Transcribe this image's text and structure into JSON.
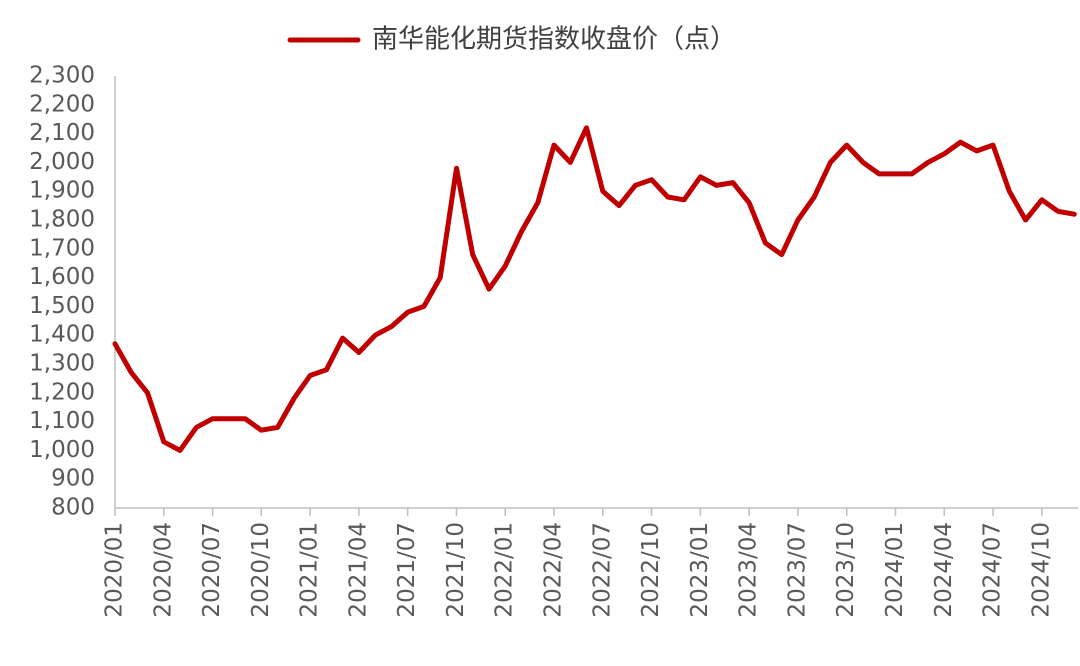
{
  "chart_data": {
    "type": "line",
    "series": [
      {
        "name": "南华能化期货指数收盘价（点）",
        "color": "#c00000",
        "values": [
          1370,
          1270,
          1200,
          1030,
          1000,
          1080,
          1110,
          1110,
          1110,
          1070,
          1080,
          1180,
          1260,
          1280,
          1390,
          1340,
          1400,
          1430,
          1480,
          1500,
          1600,
          1980,
          1680,
          1560,
          1640,
          1760,
          1860,
          2060,
          2000,
          2120,
          1900,
          1850,
          1920,
          1940,
          1880,
          1870,
          1950,
          1920,
          1930,
          1860,
          1720,
          1680,
          1800,
          1880,
          2000,
          2060,
          2000,
          1960,
          1960,
          1960,
          2000,
          2030,
          2070,
          2040,
          2060,
          1900,
          1800,
          1870,
          1830,
          1820
        ]
      }
    ],
    "categories": [
      "2020/01",
      null,
      null,
      "2020/04",
      null,
      null,
      "2020/07",
      null,
      null,
      "2020/10",
      null,
      null,
      "2021/01",
      null,
      null,
      "2021/04",
      null,
      null,
      "2021/07",
      null,
      null,
      "2021/10",
      null,
      null,
      "2022/01",
      null,
      null,
      "2022/04",
      null,
      null,
      "2022/07",
      null,
      null,
      "2022/10",
      null,
      null,
      "2023/01",
      null,
      null,
      "2023/04",
      null,
      null,
      "2023/07",
      null,
      null,
      "2023/10",
      null,
      null,
      "2024/01",
      null,
      null,
      "2024/04",
      null,
      null,
      "2024/07",
      null,
      null,
      "2024/10",
      null,
      null
    ],
    "ylim": [
      800,
      2300
    ],
    "yticks": [
      800,
      900,
      {
        "value": 1000,
        "label": "1,000"
      },
      {
        "value": 1100,
        "label": "1,100"
      },
      {
        "value": 1200,
        "label": "1,200"
      },
      {
        "value": 1300,
        "label": "1,300"
      },
      {
        "value": 1400,
        "label": "1,400"
      },
      {
        "value": 1500,
        "label": "1,500"
      },
      {
        "value": 1600,
        "label": "1,600"
      },
      {
        "value": 1700,
        "label": "1,700"
      },
      {
        "value": 1800,
        "label": "1,800"
      },
      {
        "value": 1900,
        "label": "1,900"
      },
      {
        "value": 2000,
        "label": "2,000"
      },
      {
        "value": 2100,
        "label": "2,100"
      },
      {
        "value": 2200,
        "label": "2,200"
      },
      {
        "value": 2300,
        "label": "2,300"
      }
    ],
    "legend": "top",
    "grid": false
  }
}
